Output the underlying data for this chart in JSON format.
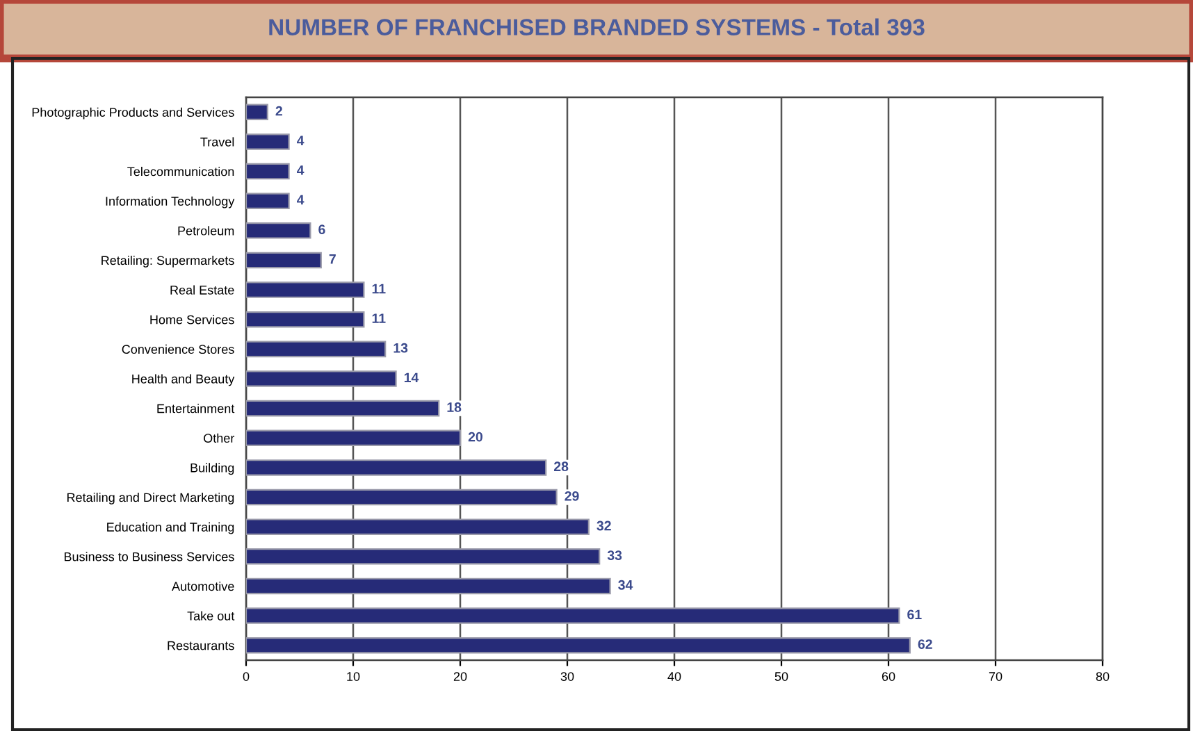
{
  "chart_data": {
    "type": "bar",
    "orientation": "horizontal",
    "title": "NUMBER OF FRANCHISED BRANDED SYSTEMS - Total 393",
    "categories": [
      "Photographic Products and Services",
      "Travel",
      "Telecommunication",
      "Information Technology",
      "Petroleum",
      "Retailing: Supermarkets",
      "Real Estate",
      "Home Services",
      "Convenience Stores",
      "Health and Beauty",
      "Entertainment",
      "Other",
      "Building",
      "Retailing and Direct Marketing",
      "Education and Training",
      "Business to Business Services",
      "Automotive",
      "Take out",
      "Restaurants"
    ],
    "values": [
      2,
      4,
      4,
      4,
      6,
      7,
      11,
      11,
      13,
      14,
      18,
      20,
      28,
      29,
      32,
      33,
      34,
      61,
      62
    ],
    "color": "#262b78",
    "xlim": [
      0,
      80
    ],
    "xticks": [
      0,
      10,
      20,
      30,
      40,
      50,
      60,
      70,
      80
    ],
    "grid": "x",
    "data_labels": true,
    "legend": false
  }
}
